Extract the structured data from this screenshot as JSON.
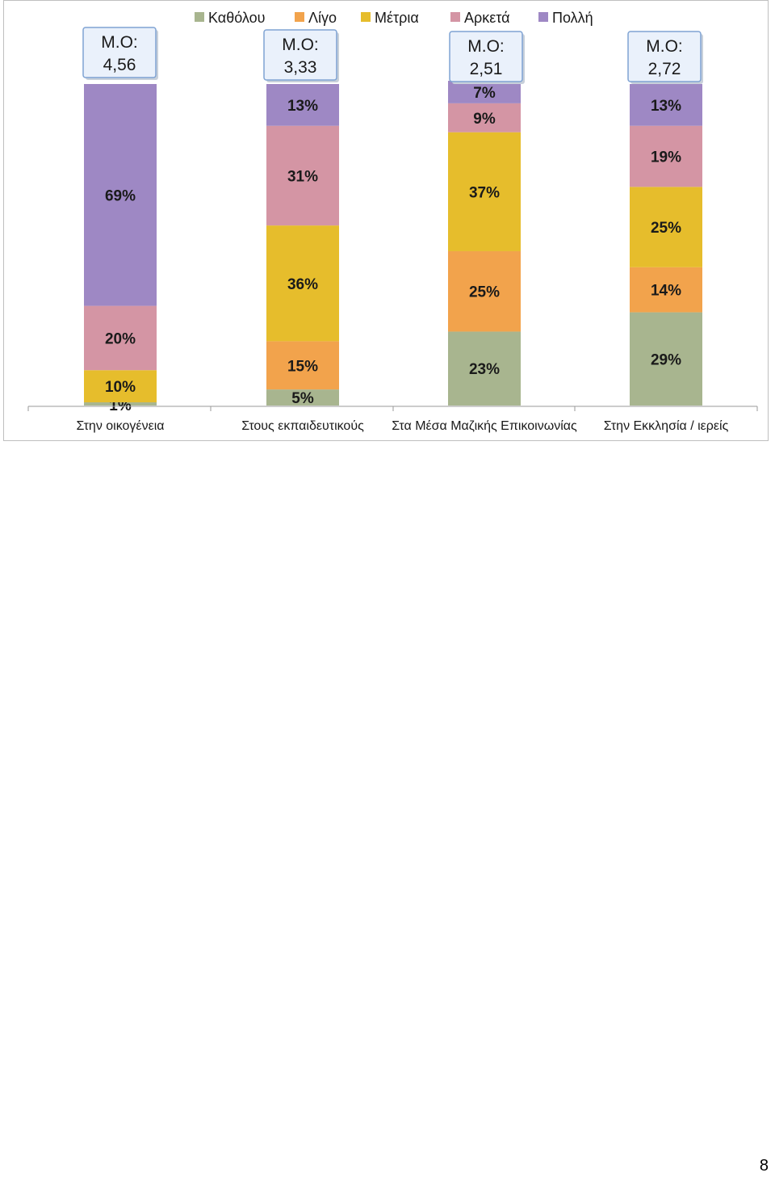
{
  "chart_data": {
    "type": "bar",
    "stacked": true,
    "normalized_percent": true,
    "categories": [
      "Στην οικογένεια",
      "Στους εκπαιδευτικούς",
      "Στα Μέσα Μαζικής Επικοινωνίας",
      "Στην Εκκλησία / ιερείς"
    ],
    "series": [
      {
        "name": "Καθόλου",
        "color": "#a8b58f",
        "values": [
          1,
          5,
          23,
          29
        ]
      },
      {
        "name": "Λίγο",
        "color": "#f2a34c",
        "values": [
          0,
          15,
          25,
          14
        ]
      },
      {
        "name": "Μέτρια",
        "color": "#e6bd2c",
        "values": [
          10,
          36,
          37,
          25
        ]
      },
      {
        "name": "Αρκετά",
        "color": "#d495a4",
        "values": [
          20,
          31,
          9,
          19
        ]
      },
      {
        "name": "Πολλή",
        "color": "#9e88c4",
        "values": [
          69,
          13,
          7,
          13
        ]
      }
    ],
    "labels": [
      [
        "1%",
        "",
        "10%",
        "20%",
        "69%"
      ],
      [
        "5%",
        "15%",
        "36%",
        "31%",
        "13%"
      ],
      [
        "23%",
        "25%",
        "37%",
        "9%",
        "7%"
      ],
      [
        "29%",
        "14%",
        "25%",
        "19%",
        "13%"
      ]
    ],
    "mean_label": "Μ.Ο:",
    "means": [
      "4,56",
      "3,33",
      "2,51",
      "2,72"
    ],
    "ylim": [
      0,
      100
    ],
    "legend_position": "top",
    "grid": false
  },
  "page_number": "8"
}
